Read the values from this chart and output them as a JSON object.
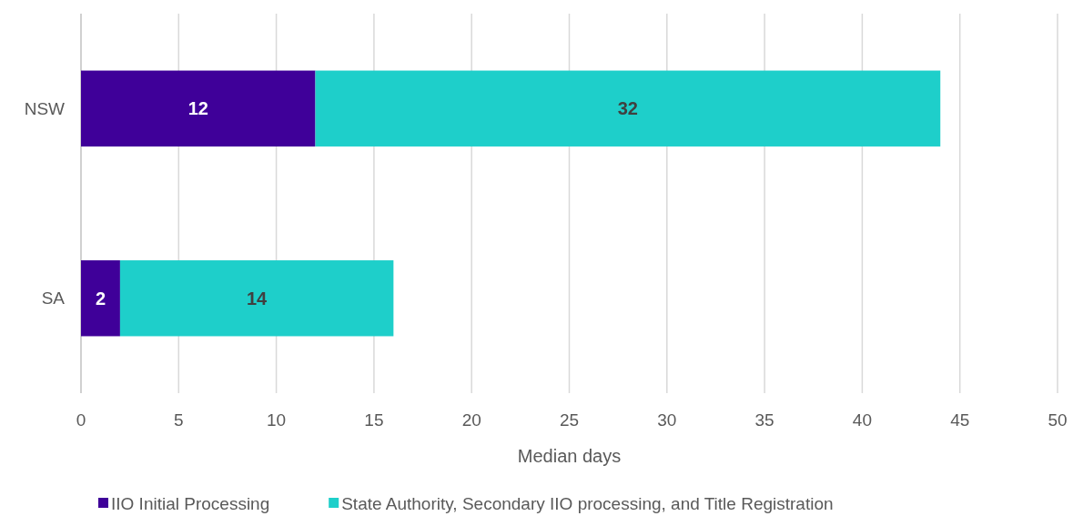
{
  "chart_data": {
    "type": "bar",
    "orientation": "horizontal",
    "stacked": true,
    "categories": [
      "NSW",
      "SA"
    ],
    "series": [
      {
        "name": "IIO Initial Processing",
        "color": "#3f0099",
        "values": [
          12,
          2
        ]
      },
      {
        "name": "State Authority, Secondary IIO processing, and Title Registration",
        "color": "#1ecfca",
        "values": [
          32,
          14
        ]
      }
    ],
    "xlabel": "Median days",
    "xlim": [
      0,
      50
    ],
    "xticks": [
      0,
      5,
      10,
      15,
      20,
      25,
      30,
      35,
      40,
      45,
      50
    ],
    "grid": "x",
    "legend": "bottom",
    "data_labels": true
  }
}
